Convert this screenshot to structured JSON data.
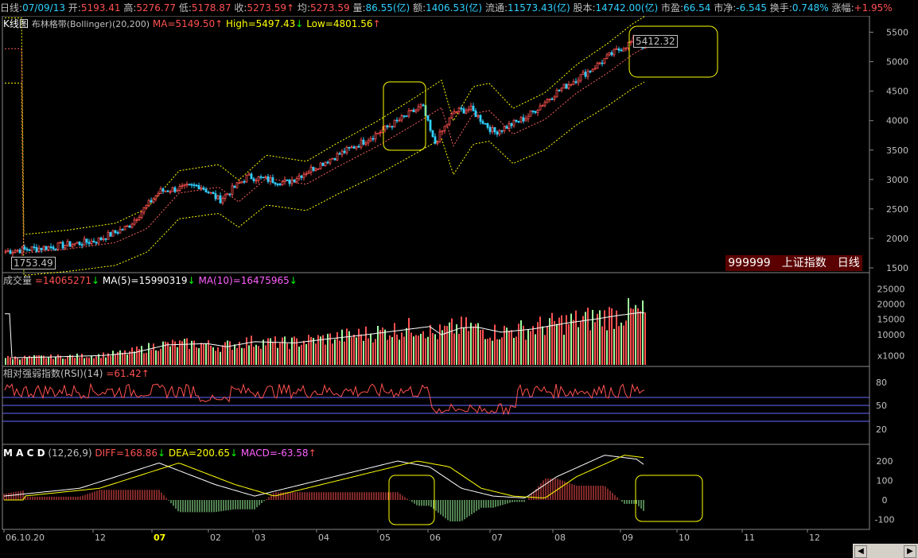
{
  "topbar": {
    "period": "日线",
    "date": "07/09/13",
    "open_label": "开",
    "open": "5193.41",
    "high_label": "高",
    "high": "5276.77",
    "low_label": "低",
    "low": "5178.87",
    "close_label": "收",
    "close": "5273.59",
    "avg_label": "均",
    "avg": "5273.59",
    "vol_label": "量",
    "vol": "86.55(亿)",
    "amt_label": "额",
    "amt": "1406.53(亿)",
    "float_label": "流通",
    "float": "11573.43(亿)",
    "shares_label": "股本",
    "shares": "14742.00(亿)",
    "pe_label": "市盈",
    "pe": "66.54",
    "pb_label": "市净",
    "pb": "-6.545",
    "turnover_label": "换手",
    "turnover": "0.748%",
    "change_label": "涨幅",
    "change": "+1.95%"
  },
  "main_panel": {
    "kline_label": "K线图",
    "indicator": "布林格带(Bollinger)(20,200)",
    "ma": "MA=5149.50",
    "high": "High=5497.43",
    "low": "Low=4801.56",
    "max_marker": "5412.32",
    "min_marker": "1753.49",
    "y_ticks": [
      "5500",
      "5000",
      "4500",
      "4000",
      "3500",
      "3000",
      "2500",
      "2000",
      "1500"
    ],
    "badge": "999999　上证指数　日线"
  },
  "volume_panel": {
    "label": "成交量",
    "vol": "=14065271",
    "ma5": "MA(5)=15990319",
    "ma10": "MA(10)=16475965",
    "y_ticks": [
      "25000",
      "20000",
      "15000",
      "10000",
      "x1000"
    ]
  },
  "rsi_panel": {
    "label": "相对强弱指数(RSI)(14)",
    "value": "=61.42",
    "y_ticks": [
      "80",
      "50",
      "20"
    ]
  },
  "macd_panel": {
    "label": "M A C D",
    "params": "(12,26,9)",
    "diff": "DIFF=168.86",
    "dea": "DEA=200.65",
    "macd": "MACD=-63.58",
    "y_ticks": [
      "200",
      "100",
      "0",
      "-100"
    ]
  },
  "x_axis": {
    "labels": [
      "06.10.20",
      "12",
      "07",
      "02",
      "03",
      "04",
      "05",
      "06",
      "07",
      "08",
      "09",
      "10",
      "11",
      "12"
    ]
  },
  "colors": {
    "up": "#ff5050",
    "down": "#30d0ff",
    "ma_line": "#ffffff",
    "band": "#ffff00",
    "highlight_box": "#ffff00"
  },
  "chart_data": {
    "type": "line",
    "title": "999999 上证指数 日线",
    "x": [
      "06.10",
      "06.12",
      "07.01",
      "07.02",
      "07.03",
      "07.04",
      "07.05",
      "07.06",
      "07.07",
      "07.08",
      "07.09"
    ],
    "series": [
      {
        "name": "收",
        "values": [
          1780,
          2050,
          2700,
          2780,
          3050,
          3500,
          4200,
          3850,
          3750,
          4650,
          5273
        ]
      }
    ],
    "ylim": [
      1500,
      5750
    ]
  }
}
